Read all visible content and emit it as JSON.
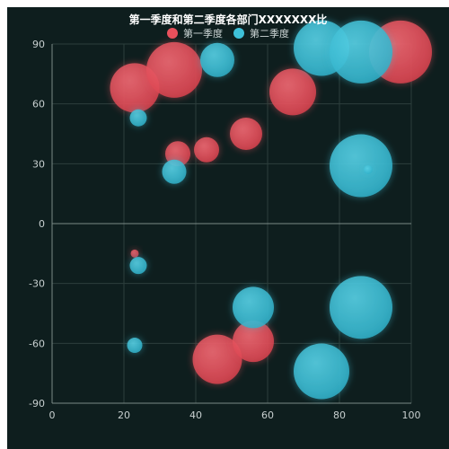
{
  "colors": {
    "background": "#0e1e1e",
    "series1": "#e8505c",
    "series2": "#3ec0d8",
    "axis_text": "#c8d0d0",
    "grid": "#2c3f3c",
    "axis_line": "#7a8a86"
  },
  "chart_data": {
    "type": "scatter",
    "variant": "bubble",
    "title": "第一季度和第二季度各部门XXXXXXX比",
    "xlim": [
      0,
      100
    ],
    "ylim": [
      -90,
      90
    ],
    "x_ticks": [
      "0",
      "20",
      "40",
      "60",
      "80",
      "100"
    ],
    "y_ticks": [
      "90",
      "60",
      "30",
      "0",
      "-30",
      "-60",
      "-90"
    ],
    "x_tick_values": [
      0,
      20,
      40,
      60,
      80,
      100
    ],
    "y_tick_values": [
      90,
      60,
      30,
      0,
      -30,
      -60,
      -90
    ],
    "grid": true,
    "legend": "top-center",
    "series": [
      {
        "name": "第一季度",
        "color": "#e8505c",
        "points": [
          {
            "x": 23,
            "y": 68,
            "size": 55
          },
          {
            "x": 34,
            "y": 77,
            "size": 62
          },
          {
            "x": 35,
            "y": 35,
            "size": 28
          },
          {
            "x": 43,
            "y": 37,
            "size": 28
          },
          {
            "x": 54,
            "y": 45,
            "size": 36
          },
          {
            "x": 67,
            "y": 66,
            "size": 52
          },
          {
            "x": 97,
            "y": 86,
            "size": 70
          },
          {
            "x": 23,
            "y": -15,
            "size": 9
          },
          {
            "x": 46,
            "y": -68,
            "size": 55
          },
          {
            "x": 56,
            "y": -59,
            "size": 46
          }
        ]
      },
      {
        "name": "第二季度",
        "color": "#3ec0d8",
        "points": [
          {
            "x": 24,
            "y": 53,
            "size": 19
          },
          {
            "x": 46,
            "y": 82,
            "size": 38
          },
          {
            "x": 34,
            "y": 26,
            "size": 27
          },
          {
            "x": 75,
            "y": 88,
            "size": 62
          },
          {
            "x": 86,
            "y": 86,
            "size": 70
          },
          {
            "x": 86,
            "y": 29,
            "size": 70
          },
          {
            "x": 88,
            "y": 27,
            "size": 10
          },
          {
            "x": 24,
            "y": -21,
            "size": 19
          },
          {
            "x": 23,
            "y": -61,
            "size": 17
          },
          {
            "x": 56,
            "y": -42,
            "size": 46
          },
          {
            "x": 86,
            "y": -42,
            "size": 70
          },
          {
            "x": 75,
            "y": -74,
            "size": 62
          }
        ]
      }
    ]
  }
}
